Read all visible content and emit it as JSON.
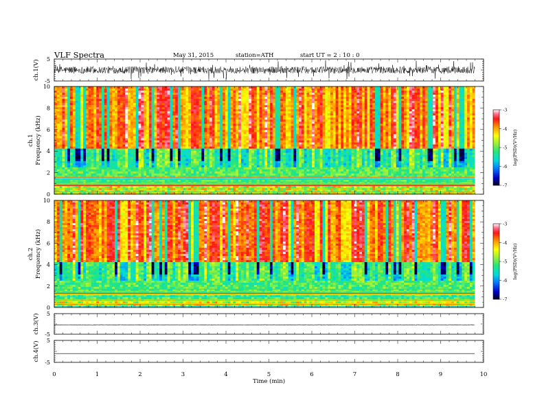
{
  "header": {
    "title": "VLF  Spectra",
    "date": "May 31, 2015",
    "station": "station=ATH",
    "start": "start  UT  =   2 : 10 : 0"
  },
  "chart_data": [
    {
      "type": "line",
      "name": "ch.1 waveform",
      "ylabel": "ch.1(V)",
      "ylim": [
        -5,
        5
      ],
      "yticks": [
        "5",
        "-5"
      ],
      "xlim": [
        0,
        10
      ],
      "description_values": "dense noisy waveform, amplitude mostly between -4 and 4 V"
    },
    {
      "type": "heatmap",
      "name": "ch.1 spectrogram",
      "ylabel": "ch.1\nFrequency (kHz)",
      "ylabel_lines": [
        "ch.1",
        "Frequency  (kHz)"
      ],
      "ylim": [
        0,
        10
      ],
      "yticks": [
        "0",
        "2",
        "4",
        "6",
        "8",
        "10"
      ],
      "xlim": [
        0,
        9.8
      ],
      "colorbar": {
        "label": "log(PSD)(V²/Hz)",
        "range": [
          -7,
          -3
        ],
        "ticks": [
          "-3",
          "-4",
          "-5",
          "-6",
          "-7"
        ]
      }
    },
    {
      "type": "heatmap",
      "name": "ch.2 spectrogram",
      "ylabel_lines": [
        "ch.2",
        "Frequency  (kHz)"
      ],
      "ylim": [
        0,
        10
      ],
      "yticks": [
        "0",
        "2",
        "4",
        "6",
        "8",
        "10"
      ],
      "xlim": [
        0,
        9.8
      ],
      "colorbar": {
        "label": "log(PSD)(V²/Hz)",
        "range": [
          -7,
          -3
        ],
        "ticks": [
          "-3",
          "-4",
          "-5",
          "-6",
          "-7"
        ]
      }
    },
    {
      "type": "line",
      "name": "ch.3 waveform",
      "ylabel": "ch.3(V)",
      "ylim": [
        -5,
        5
      ],
      "yticks": [
        "5",
        "-5"
      ],
      "xlim": [
        0,
        10
      ],
      "level": -0.5
    },
    {
      "type": "line",
      "name": "ch.4 waveform",
      "ylabel": "ch.4(V)",
      "ylim": [
        -5,
        5
      ],
      "yticks": [
        "5",
        "-5"
      ],
      "xlim": [
        0,
        10
      ],
      "level": -1.0,
      "xlabel": "Time  (min)",
      "xticks": [
        "0",
        "1",
        "2",
        "3",
        "4",
        "5",
        "6",
        "7",
        "8",
        "9",
        "10"
      ]
    }
  ]
}
